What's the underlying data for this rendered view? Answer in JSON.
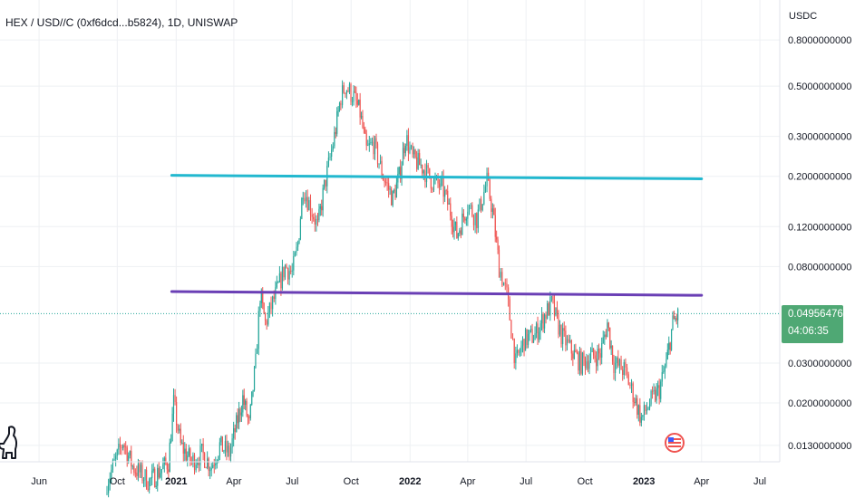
{
  "title": "HEX / USD//C (0xf6dcd...b5824), 1D, UNISWAP",
  "unit": "USDC",
  "last_price": "0.0495647637",
  "countdown": "04:06:35",
  "colors": {
    "up": "#26a69a",
    "down": "#ef5350",
    "cyan_line": "#22b8cf",
    "purple_line": "#6a3fb5",
    "grid": "#eef0f3",
    "price_box": "#4fa874"
  },
  "icons": [
    "tradingview-dino-icon",
    "us-flag-icon"
  ],
  "chart_data": {
    "type": "line",
    "y_scale": "log",
    "ylim": [
      0.011,
      1.2
    ],
    "y_ticks": [
      {
        "value": 0.8,
        "label": "0.8000000000"
      },
      {
        "value": 0.5,
        "label": "0.5000000000"
      },
      {
        "value": 0.3,
        "label": "0.3000000000"
      },
      {
        "value": 0.2,
        "label": "0.2000000000"
      },
      {
        "value": 0.12,
        "label": "0.1200000000"
      },
      {
        "value": 0.08,
        "label": "0.0800000000"
      },
      {
        "value": 0.03,
        "label": "0.0300000000"
      },
      {
        "value": 0.02,
        "label": "0.0200000000"
      },
      {
        "value": 0.013,
        "label": "0.0130000000"
      }
    ],
    "x_ticks": [
      {
        "x": "2020-06-01",
        "label": "Jun",
        "bold": false
      },
      {
        "x": "2020-10-01",
        "label": "Oct",
        "bold": false
      },
      {
        "x": "2021-01-01",
        "label": "2021",
        "bold": true
      },
      {
        "x": "2021-04-01",
        "label": "Apr",
        "bold": false
      },
      {
        "x": "2021-07-01",
        "label": "Jul",
        "bold": false
      },
      {
        "x": "2021-10-01",
        "label": "Oct",
        "bold": false
      },
      {
        "x": "2022-01-01",
        "label": "2022",
        "bold": true
      },
      {
        "x": "2022-04-01",
        "label": "Apr",
        "bold": false
      },
      {
        "x": "2022-07-01",
        "label": "Jul",
        "bold": false
      },
      {
        "x": "2022-10-01",
        "label": "Oct",
        "bold": false
      },
      {
        "x": "2023-01-01",
        "label": "2023",
        "bold": true
      },
      {
        "x": "2023-04-01",
        "label": "Apr",
        "bold": false
      },
      {
        "x": "2023-07-01",
        "label": "Jul",
        "bold": false
      }
    ],
    "series": [
      {
        "points": [
          [
            "2020-09-15",
            0.009
          ],
          [
            "2020-10-10",
            0.0135
          ],
          [
            "2020-10-25",
            0.0105
          ],
          [
            "2020-11-20",
            0.009
          ],
          [
            "2020-12-20",
            0.011
          ],
          [
            "2020-12-28",
            0.02
          ],
          [
            "2021-01-08",
            0.013
          ],
          [
            "2021-01-25",
            0.011
          ],
          [
            "2021-02-10",
            0.012
          ],
          [
            "2021-02-25",
            0.0105
          ],
          [
            "2021-03-10",
            0.013
          ],
          [
            "2021-03-25",
            0.012
          ],
          [
            "2021-04-05",
            0.016
          ],
          [
            "2021-04-15",
            0.021
          ],
          [
            "2021-04-25",
            0.016
          ],
          [
            "2021-05-05",
            0.03
          ],
          [
            "2021-05-12",
            0.06
          ],
          [
            "2021-05-20",
            0.045
          ],
          [
            "2021-06-05",
            0.06
          ],
          [
            "2021-06-20",
            0.08
          ],
          [
            "2021-07-01",
            0.075
          ],
          [
            "2021-07-10",
            0.1
          ],
          [
            "2021-07-18",
            0.18
          ],
          [
            "2021-08-01",
            0.14
          ],
          [
            "2021-08-10",
            0.12
          ],
          [
            "2021-08-20",
            0.18
          ],
          [
            "2021-09-05",
            0.3
          ],
          [
            "2021-09-15",
            0.45
          ],
          [
            "2021-09-22",
            0.5
          ],
          [
            "2021-10-05",
            0.45
          ],
          [
            "2021-10-15",
            0.38
          ],
          [
            "2021-10-25",
            0.26
          ],
          [
            "2021-11-05",
            0.28
          ],
          [
            "2021-11-20",
            0.2
          ],
          [
            "2021-12-05",
            0.16
          ],
          [
            "2021-12-15",
            0.2
          ],
          [
            "2021-12-25",
            0.3
          ],
          [
            "2022-01-05",
            0.24
          ],
          [
            "2022-01-20",
            0.22
          ],
          [
            "2022-02-05",
            0.19
          ],
          [
            "2022-02-20",
            0.18
          ],
          [
            "2022-03-05",
            0.14
          ],
          [
            "2022-03-15",
            0.11
          ],
          [
            "2022-04-01",
            0.15
          ],
          [
            "2022-04-15",
            0.13
          ],
          [
            "2022-05-01",
            0.19
          ],
          [
            "2022-05-10",
            0.14
          ],
          [
            "2022-05-20",
            0.08
          ],
          [
            "2022-06-01",
            0.06
          ],
          [
            "2022-06-15",
            0.03
          ],
          [
            "2022-06-28",
            0.038
          ],
          [
            "2022-07-15",
            0.04
          ],
          [
            "2022-08-01",
            0.05
          ],
          [
            "2022-08-10",
            0.055
          ],
          [
            "2022-08-25",
            0.04
          ],
          [
            "2022-09-10",
            0.034
          ],
          [
            "2022-09-25",
            0.03
          ],
          [
            "2022-10-10",
            0.032
          ],
          [
            "2022-10-25",
            0.033
          ],
          [
            "2022-11-05",
            0.045
          ],
          [
            "2022-11-15",
            0.03
          ],
          [
            "2022-12-01",
            0.028
          ],
          [
            "2022-12-15",
            0.022
          ],
          [
            "2022-12-28",
            0.017
          ],
          [
            "2023-01-10",
            0.02
          ],
          [
            "2023-01-25",
            0.023
          ],
          [
            "2023-02-05",
            0.03
          ],
          [
            "2023-02-15",
            0.045
          ],
          [
            "2023-02-25",
            0.0496
          ]
        ]
      }
    ],
    "annotations": [
      {
        "type": "hline",
        "color": "#22b8cf",
        "x1": "2020-12-25",
        "y1": 0.202,
        "x2": "2023-04-01",
        "y2": 0.195
      },
      {
        "type": "hline",
        "color": "#6a3fb5",
        "x1": "2020-12-25",
        "y1": 0.062,
        "x2": "2023-04-01",
        "y2": 0.0597
      }
    ],
    "grid": true,
    "last_value": 0.0495647637
  }
}
